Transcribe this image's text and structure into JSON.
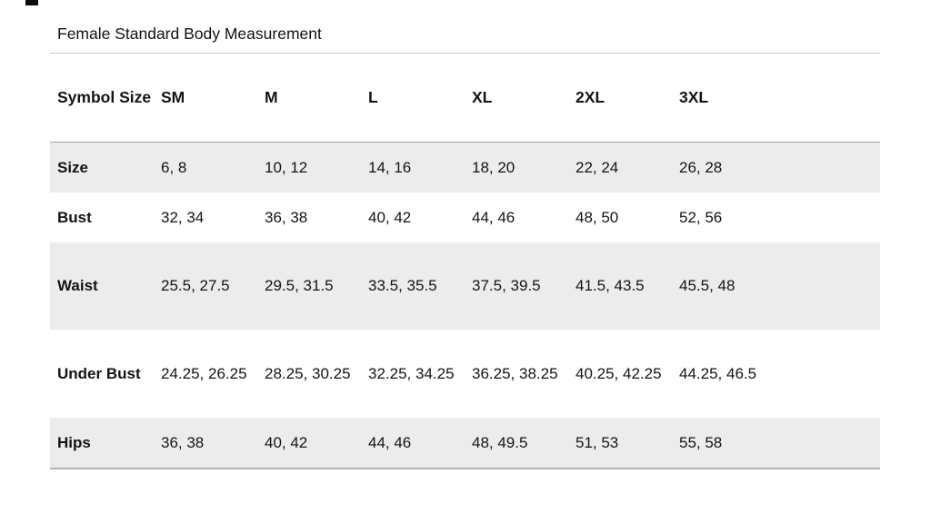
{
  "title": "Female Standard Body Measurement",
  "colors": {
    "band_fill": "#ececec",
    "top_rule": "#c9c9c9",
    "header_rule": "#a3a3a3",
    "bottom_rule": "#b3b3b3"
  },
  "table": {
    "header": [
      "Symbol Size",
      "SM",
      "M",
      "L",
      "XL",
      "2XL",
      "3XL"
    ],
    "rows": [
      {
        "label": "Size",
        "values": [
          "6, 8",
          "10, 12",
          "14, 16",
          "18, 20",
          "22, 24",
          "26, 28"
        ]
      },
      {
        "label": "Bust",
        "values": [
          "32, 34",
          "36, 38",
          "40, 42",
          "44, 46",
          "48, 50",
          "52, 56"
        ]
      },
      {
        "label": "Waist",
        "values": [
          "25.5, 27.5",
          "29.5, 31.5",
          "33.5, 35.5",
          "37.5, 39.5",
          "41.5, 43.5",
          "45.5, 48"
        ]
      },
      {
        "label": "Under Bust",
        "values": [
          "24.25, 26.25",
          "28.25, 30.25",
          "32.25, 34.25",
          "36.25, 38.25",
          "40.25, 42.25",
          "44.25, 46.5"
        ]
      },
      {
        "label": "Hips",
        "values": [
          "36, 38",
          "40, 42",
          "44, 46",
          "48, 49.5",
          "51, 53",
          "55, 58"
        ]
      }
    ]
  }
}
